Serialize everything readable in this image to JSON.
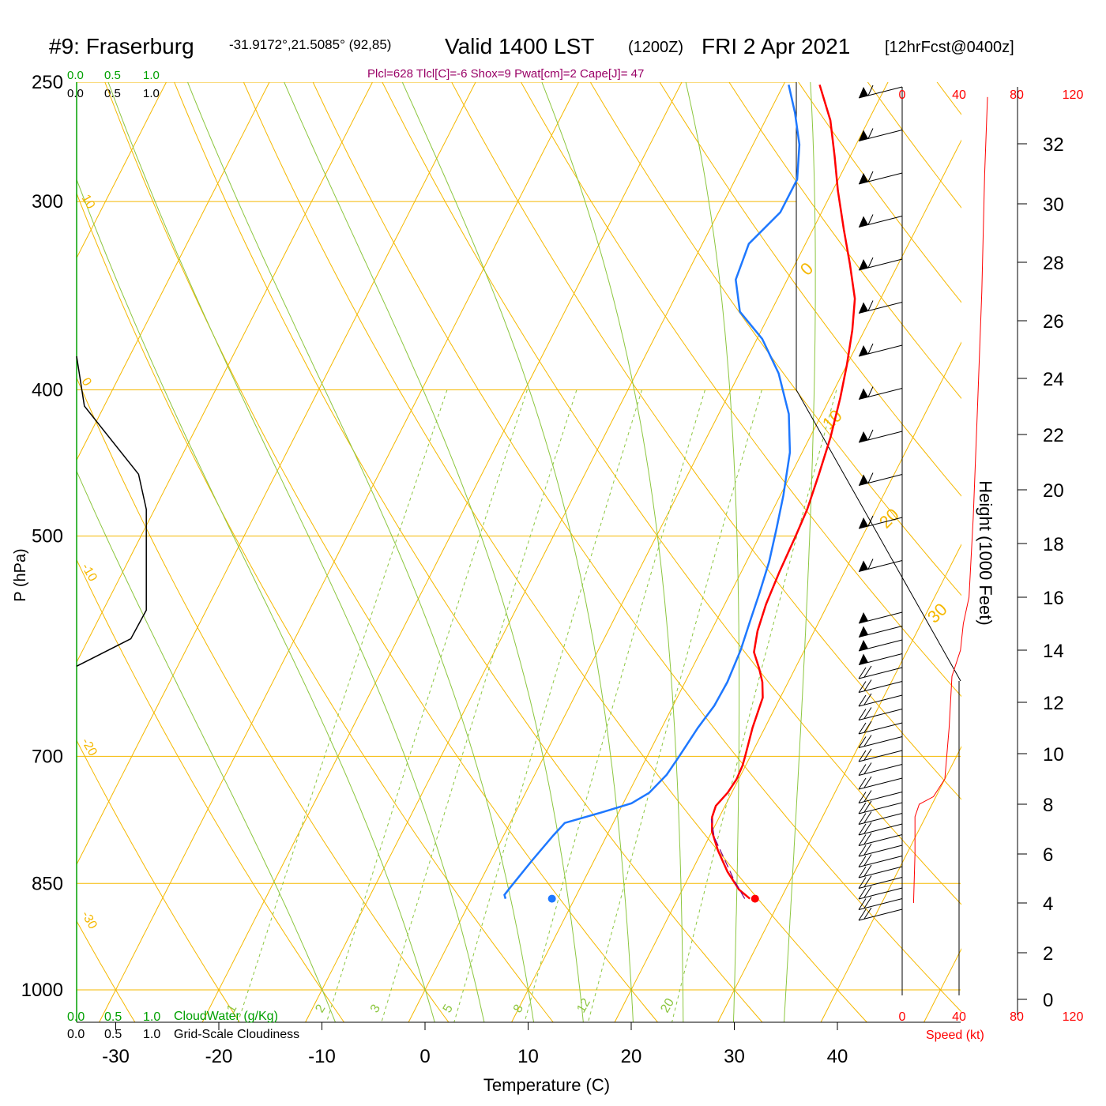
{
  "header": {
    "station": "#9: Fraserburg",
    "coords": "-31.9172°,21.5085° (92,85)",
    "valid": "Valid 1400 LST",
    "zulu": "(1200Z)",
    "date": "FRI 2 Apr 2021",
    "fcst": "[12hrFcst@0400z]",
    "indices": "Plcl=628 Tlcl[C]=-6 Shox=9 Pwat[cm]=2 Cape[J]= 47"
  },
  "scales": {
    "cloud_top_green": [
      "0.0",
      "0.5",
      "1.0"
    ],
    "cloud_top_black": [
      "0.0",
      "0.5",
      "1.0"
    ],
    "cloud_bottom_green": [
      "0.0",
      "0.5",
      "1.0"
    ],
    "cloud_bottom_black": [
      "0.0",
      "0.5",
      "1.0"
    ],
    "cloudwater_label": "CloudWater (g/Kg)",
    "cloudiness_label": "Grid-Scale Cloudiness"
  },
  "colors": {
    "isotherm": "#f5b800",
    "dry_adiabat": "#f5b800",
    "moist_adiabat": "#8cc63f",
    "mixing_ratio": "#8cc63f",
    "temperature": "#ff0000",
    "dewpoint": "#1e78ff",
    "parcel": "#800080",
    "cloudiness": "#000000",
    "cloudwater": "#00a000",
    "speed": "#ff0000",
    "indices": "#990066"
  },
  "chart_data": {
    "type": "line",
    "title": "#9: Fraserburg -31.9172°,21.5085° (92,85) Valid 1400 LST (1200Z) FRI 2 Apr 2021 [12hrFcst@0400z]",
    "xlabel": "Temperature (C)",
    "ylabel": "P (hPa)",
    "ylabel_right": "Height (1000 Feet)",
    "speed_label": "Speed (kt)",
    "pressure_ticks": [
      250,
      300,
      400,
      500,
      700,
      850,
      1000
    ],
    "temperature_ticks": [
      -30,
      -20,
      -10,
      0,
      10,
      20,
      30,
      40
    ],
    "height_ticks": [
      0,
      2,
      4,
      6,
      8,
      10,
      12,
      14,
      16,
      18,
      20,
      22,
      24,
      26,
      28,
      30,
      32
    ],
    "speed_ticks": [
      0,
      40,
      80,
      120
    ],
    "isotherm_labels": [
      "10",
      "0",
      "-10",
      "-20",
      "-30"
    ],
    "adiabat_labels": [
      "0",
      "10",
      "20",
      "30"
    ],
    "mixing_ratio_labels": [
      "1",
      "2",
      "3",
      "5",
      "8",
      "12",
      "20"
    ],
    "series": [
      {
        "name": "Temperature",
        "points": [
          [
            27.0,
            870
          ],
          [
            25.5,
            858
          ],
          [
            23.5,
            835
          ],
          [
            21.5,
            808
          ],
          [
            20.0,
            785
          ],
          [
            19.3,
            768
          ],
          [
            19.1,
            755
          ],
          [
            19.6,
            740
          ],
          [
            19.8,
            725
          ],
          [
            19.7,
            710
          ],
          [
            19.5,
            700
          ],
          [
            18.8,
            670
          ],
          [
            18.3,
            640
          ],
          [
            17.5,
            625
          ],
          [
            16.5,
            612
          ],
          [
            15.2,
            597
          ],
          [
            14.5,
            578
          ],
          [
            14.0,
            555
          ],
          [
            13.7,
            528
          ],
          [
            13.5,
            500
          ],
          [
            13.3,
            480
          ],
          [
            12.7,
            455
          ],
          [
            12.0,
            430
          ],
          [
            11.0,
            405
          ],
          [
            10.0,
            385
          ],
          [
            8.8,
            365
          ],
          [
            7.5,
            348
          ],
          [
            5.3,
            330
          ],
          [
            3.0,
            313
          ],
          [
            0.5,
            295
          ],
          [
            -1.5,
            280
          ],
          [
            -3.7,
            265
          ],
          [
            -6.5,
            251
          ]
        ]
      },
      {
        "name": "Dewpoint",
        "points": [
          [
            3.3,
            870
          ],
          [
            3.0,
            865
          ],
          [
            3.2,
            855
          ],
          [
            4.0,
            820
          ],
          [
            4.8,
            790
          ],
          [
            5.3,
            775
          ],
          [
            8.5,
            762
          ],
          [
            10.8,
            752
          ],
          [
            12.0,
            740
          ],
          [
            12.8,
            720
          ],
          [
            13.1,
            700
          ],
          [
            13.3,
            685
          ],
          [
            13.5,
            670
          ],
          [
            14.0,
            648
          ],
          [
            14.1,
            625
          ],
          [
            13.8,
            595
          ],
          [
            13.3,
            570
          ],
          [
            12.8,
            545
          ],
          [
            12.2,
            520
          ],
          [
            11.3,
            495
          ],
          [
            10.3,
            470
          ],
          [
            8.8,
            440
          ],
          [
            6.8,
            415
          ],
          [
            3.8,
            390
          ],
          [
            0.5,
            370
          ],
          [
            -3.0,
            355
          ],
          [
            -5.0,
            338
          ],
          [
            -5.5,
            320
          ],
          [
            -4.0,
            305
          ],
          [
            -4.0,
            290
          ],
          [
            -5.5,
            275
          ],
          [
            -7.5,
            262
          ],
          [
            -9.5,
            251
          ]
        ]
      },
      {
        "name": "Parcel",
        "points": [
          [
            26.5,
            870
          ],
          [
            24.5,
            845
          ],
          [
            22.5,
            818
          ],
          [
            20.5,
            792
          ],
          [
            19.3,
            770
          ]
        ]
      }
    ],
    "surface_temperature": 27.5,
    "surface_dewpoint": 7.8,
    "surface_pressure": 870,
    "cloudiness": [
      [
        0.0,
        380
      ],
      [
        0.05,
        410
      ],
      [
        0.4,
        455
      ],
      [
        0.45,
        480
      ],
      [
        0.45,
        560
      ],
      [
        0.35,
        585
      ],
      [
        0.0,
        610
      ]
    ],
    "wind_speed": [
      [
        8,
        4.0
      ],
      [
        9,
        6.0
      ],
      [
        9,
        7.5
      ],
      [
        12,
        8.0
      ],
      [
        22,
        8.3
      ],
      [
        30,
        9.0
      ],
      [
        33,
        11.0
      ],
      [
        35,
        13.0
      ],
      [
        41,
        14.0
      ],
      [
        43,
        15.0
      ],
      [
        47,
        16.0
      ],
      [
        50,
        19.0
      ],
      [
        53,
        23.0
      ],
      [
        56,
        27.0
      ],
      [
        58,
        31.0
      ],
      [
        60,
        33.6
      ]
    ],
    "wind_barbs": {
      "count": 55,
      "direction_deg": 265
    },
    "xlim": [
      -33,
      43
    ],
    "ylim": [
      250,
      1050
    ],
    "height_lim": [
      -0.5,
      34.2
    ],
    "speed_lim": [
      0,
      120
    ],
    "grid": true,
    "skew_t": true,
    "log_pressure": true
  }
}
